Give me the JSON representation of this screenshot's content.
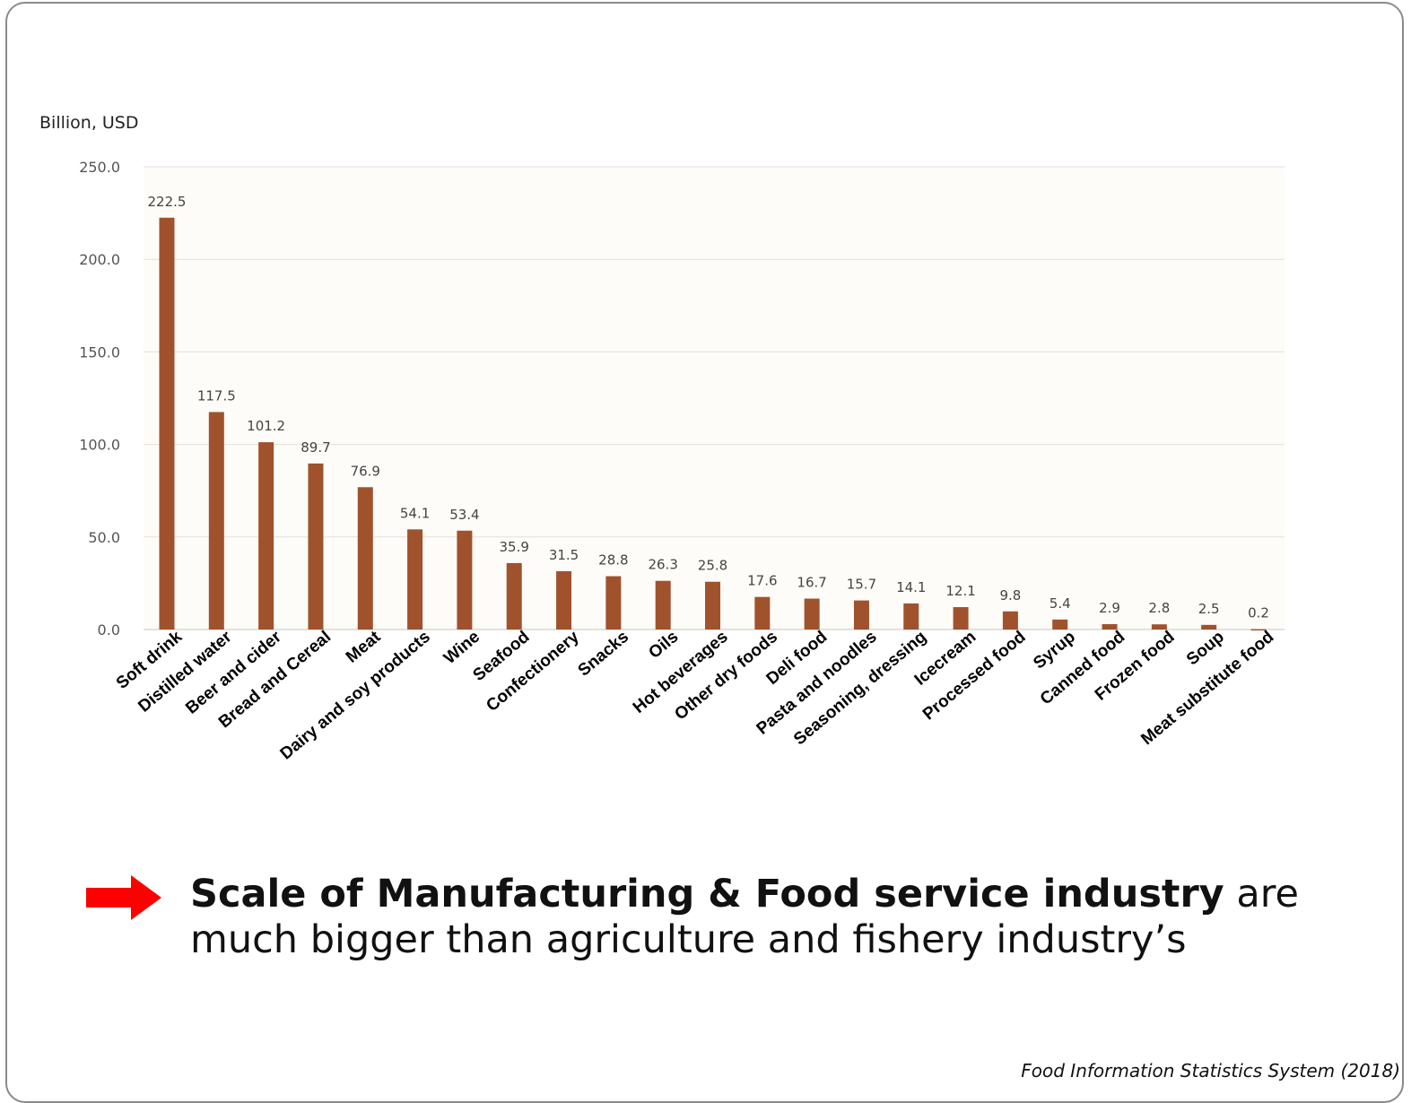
{
  "chart_data": {
    "type": "bar",
    "ylabel": "Billion, USD",
    "ylim": [
      0,
      250
    ],
    "yticks": [
      "0.0",
      "50.0",
      "100.0",
      "150.0",
      "200.0",
      "250.0"
    ],
    "grid": true,
    "bar_color": "#a0522d",
    "categories": [
      "Soft drink",
      "Distilled water",
      "Beer and cider",
      "Bread and Cereal",
      "Meat",
      "Dairy and soy products",
      "Wine",
      "Seafood",
      "Confectionery",
      "Snacks",
      "Oils",
      "Hot beverages",
      "Other dry foods",
      "Deli food",
      "Pasta and noodles",
      "Seasoning, dressing",
      "Icecream",
      "Processed food",
      "Syrup",
      "Canned food",
      "Frozen food",
      "Soup",
      "Meat substitute food"
    ],
    "values": [
      222.5,
      117.5,
      101.2,
      89.7,
      76.9,
      54.1,
      53.4,
      35.9,
      31.5,
      28.8,
      26.3,
      25.8,
      17.6,
      16.7,
      15.7,
      14.1,
      12.1,
      9.8,
      5.4,
      2.9,
      2.8,
      2.5,
      0.2
    ],
    "value_labels": [
      "222.5",
      "117.5",
      "101.2",
      "89.7",
      "76.9",
      "54.1",
      "53.4",
      "35.9",
      "31.5",
      "28.8",
      "26.3",
      "25.8",
      "17.6",
      "16.7",
      "15.7",
      "14.1",
      "12.1",
      "9.8",
      "5.4",
      "2.9",
      "2.8",
      "2.5",
      "0.2"
    ]
  },
  "callout": {
    "bold": "Scale of Manufacturing & Food service industry",
    "rest": " are much bigger than agriculture and fishery industry’s",
    "arrow_color": "#ff0000",
    "icon": "right-arrow-icon"
  },
  "source": "Food Information Statistics System (2018)"
}
